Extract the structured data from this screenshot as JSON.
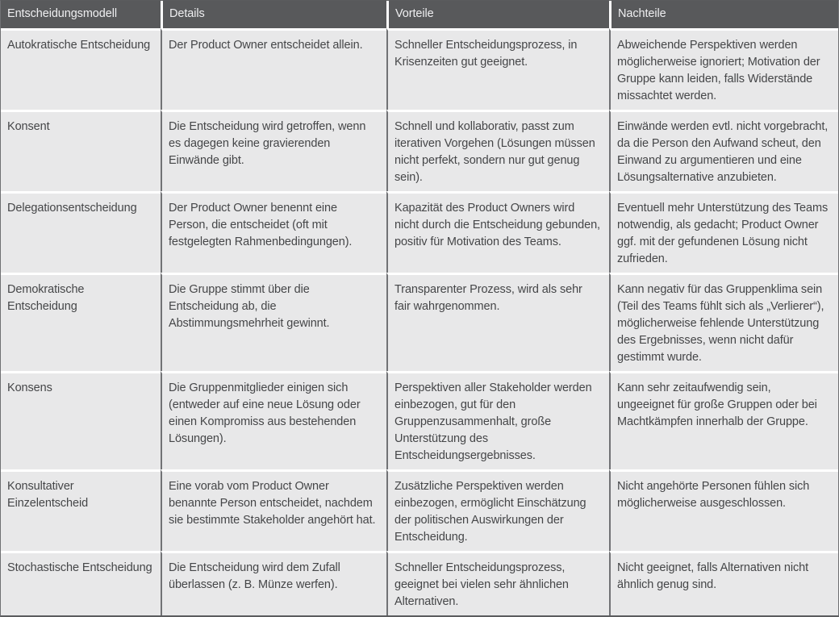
{
  "table": {
    "headers": {
      "model": "Entscheidungsmodell",
      "details": "Details",
      "vorteile": "Vorteile",
      "nachteile": "Nachteile"
    },
    "rows": [
      {
        "model": "Autokratische Entscheidung",
        "details": "Der Product Owner entscheidet allein.",
        "vorteile": "Schneller Entscheidungsprozess, in Krisenzeiten gut geeignet.",
        "nachteile": "Abweichende Perspektiven werden möglicherweise ignoriert; Motivation der Gruppe kann leiden, falls Widerstände missachtet werden."
      },
      {
        "model": "Konsent",
        "details": "Die Entscheidung wird getroffen, wenn es dagegen keine gravierenden Einwände gibt.",
        "vorteile": "Schnell und kollaborativ, passt zum iterativen Vorgehen (Lösungen müssen nicht perfekt, sondern nur gut genug sein).",
        "nachteile": "Einwände werden evtl. nicht vorgebracht, da die Person den Aufwand scheut, den Einwand zu argumentieren und eine Lösungsalternative anzubieten."
      },
      {
        "model": "Delegationsentscheidung",
        "details": "Der Product Owner benennt eine Person, die entscheidet (oft mit festgelegten Rahmenbedingungen).",
        "vorteile": "Kapazität des Product Owners wird nicht durch die Entscheidung gebunden, positiv für Motivation des Teams.",
        "nachteile": "Eventuell mehr Unterstützung des Teams notwendig, als gedacht; Product Owner ggf. mit der gefundenen Lösung nicht zufrieden."
      },
      {
        "model": "Demokratische Entscheidung",
        "details": "Die Gruppe stimmt über die Entscheidung ab, die Abstimmungsmehrheit gewinnt.",
        "vorteile": "Transparenter Prozess, wird als sehr fair wahrgenommen.",
        "nachteile": "Kann negativ für das Gruppenklima sein (Teil des Teams fühlt sich als „Verlierer“), möglicherweise fehlende Unterstützung des Ergebnisses, wenn nicht dafür gestimmt wurde."
      },
      {
        "model": "Konsens",
        "details": "Die Gruppenmitglieder einigen sich (entweder auf eine neue Lösung oder einen Kompromiss aus bestehenden Lösungen).",
        "vorteile": "Perspektiven aller Stakeholder werden einbezogen, gut für den Gruppenzusammenhalt, große Unterstützung des Entscheidungsergebnisses.",
        "nachteile": "Kann sehr zeitaufwendig sein, ungeeignet für große Gruppen oder bei Machtkämpfen innerhalb der Gruppe."
      },
      {
        "model": "Konsultativer Einzelentscheid",
        "details": "Eine vorab vom Product Owner benannte Person entscheidet, nachdem sie bestimmte Stakeholder angehört hat.",
        "vorteile": "Zusätzliche Perspektiven werden einbezogen, ermöglicht Einschätzung der politischen Auswirkungen der Entscheidung.",
        "nachteile": "Nicht angehörte Personen fühlen sich möglicherweise ausgeschlossen."
      },
      {
        "model": "Stochastische Entscheidung",
        "details": "Die Entscheidung wird dem Zufall überlassen (z. B. Münze werfen).",
        "vorteile": "Schneller Entscheidungsprozess, geeignet bei vielen sehr ähnlichen Alternativen.",
        "nachteile": "Nicht geeignet, falls Alternativen nicht ähnlich genug sind."
      }
    ]
  },
  "colors": {
    "header_bg": "#58595b",
    "header_text": "#efeff1",
    "cell_bg": "#e8e8e9",
    "cell_text": "#454648",
    "column_divider": "#717275",
    "row_gap": "#ffffff"
  }
}
